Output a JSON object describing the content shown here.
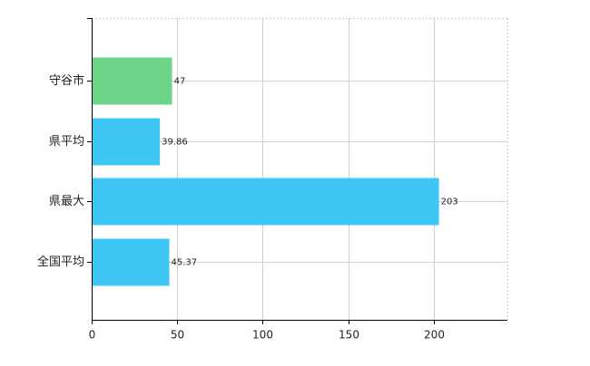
{
  "chart_data": {
    "type": "hbar",
    "categories": [
      "守谷市",
      "県平均",
      "県最大",
      "全国平均"
    ],
    "values": [
      47,
      39.86,
      203,
      45.37
    ],
    "colors": [
      "#6dd48a",
      "#3ec6f5",
      "#3ec6f5",
      "#3ec6f5"
    ],
    "xlim": [
      0,
      243
    ],
    "xticks": [
      0,
      50,
      100,
      150,
      200
    ],
    "grid": true
  }
}
